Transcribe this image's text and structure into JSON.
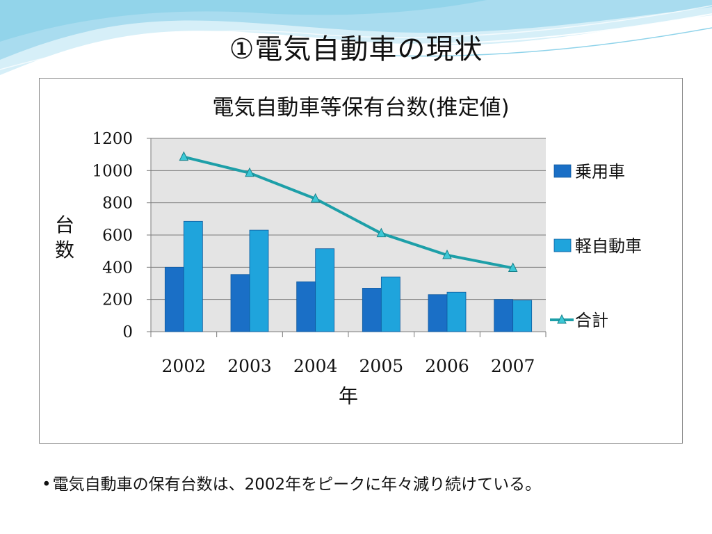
{
  "slide": {
    "title": "①電気自動車の現状",
    "footnote_bullet": "•",
    "footnote": "電気自動車の保有台数は、2002年をピークに年々減り続けている。"
  },
  "colors": {
    "passenger": "#1a6fc6",
    "kei": "#1fa4dc",
    "total": "#1d9fa8",
    "plot_bg": "#e4e4e4",
    "wave_light": "#bfe6f4",
    "wave_mid": "#7fcde6"
  },
  "chart_data": {
    "type": "bar",
    "title": "電気自動車等保有台数(推定値)",
    "xlabel": "年",
    "ylabel": "台数",
    "categories": [
      "2002",
      "2003",
      "2004",
      "2005",
      "2006",
      "2007"
    ],
    "ylim": [
      0,
      1200
    ],
    "yticks": [
      "0",
      "200",
      "400",
      "600",
      "800",
      "1000",
      "1200"
    ],
    "grid": true,
    "legend_position": "right",
    "series": [
      {
        "name": "乗用車",
        "kind": "bar",
        "values": [
          400,
          355,
          310,
          270,
          230,
          200
        ]
      },
      {
        "name": "軽自動車",
        "kind": "bar",
        "values": [
          685,
          630,
          515,
          340,
          245,
          195
        ]
      },
      {
        "name": "合計",
        "kind": "line",
        "values": [
          1085,
          985,
          825,
          610,
          475,
          395
        ]
      }
    ]
  }
}
